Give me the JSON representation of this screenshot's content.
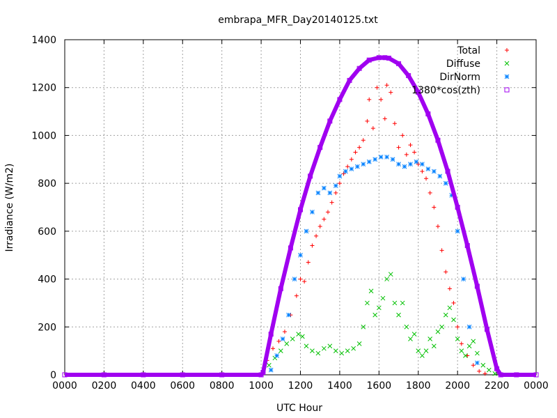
{
  "chart_data": {
    "type": "scatter",
    "title": "embrapa_MFR_Day20140125.txt",
    "xlabel": "UTC Hour",
    "ylabel": "Irradiance (W/m2)",
    "xlim": [
      0,
      24
    ],
    "ylim": [
      0,
      1400
    ],
    "x_ticks": [
      0,
      2,
      4,
      6,
      8,
      10,
      12,
      14,
      16,
      18,
      20,
      22,
      24
    ],
    "x_tick_labels": [
      "0000",
      "0200",
      "0400",
      "0600",
      "0800",
      "1000",
      "1200",
      "1400",
      "1600",
      "1800",
      "2000",
      "2200",
      "0000"
    ],
    "y_ticks": [
      0,
      200,
      400,
      600,
      800,
      1000,
      1200,
      1400
    ],
    "y_tick_labels": [
      "0",
      "200",
      "400",
      "600",
      "800",
      "1000",
      "1200",
      "1400"
    ],
    "grid": true,
    "legend_position": "top-right",
    "series": [
      {
        "name": "Total",
        "marker": "plus",
        "color": "#ff0000",
        "x": [
          10.3,
          10.6,
          10.9,
          11.2,
          11.5,
          11.8,
          12.0,
          12.2,
          12.4,
          12.6,
          12.8,
          13.0,
          13.2,
          13.4,
          13.6,
          13.8,
          14.0,
          14.2,
          14.4,
          14.6,
          14.8,
          15.0,
          15.2,
          15.4,
          15.5,
          15.7,
          15.9,
          16.1,
          16.3,
          16.4,
          16.6,
          16.8,
          17.0,
          17.2,
          17.4,
          17.6,
          17.8,
          18.0,
          18.2,
          18.4,
          18.6,
          18.8,
          19.0,
          19.2,
          19.4,
          19.6,
          19.8,
          20.0,
          20.2,
          20.5,
          20.8,
          21.1,
          21.4
        ],
        "y": [
          60,
          110,
          140,
          180,
          250,
          330,
          400,
          390,
          470,
          540,
          580,
          620,
          650,
          680,
          720,
          760,
          800,
          840,
          870,
          900,
          930,
          950,
          980,
          1060,
          1150,
          1030,
          1200,
          1150,
          1070,
          1210,
          1180,
          1050,
          950,
          1000,
          920,
          960,
          930,
          880,
          850,
          820,
          760,
          700,
          620,
          520,
          430,
          360,
          300,
          200,
          130,
          80,
          40,
          15,
          5
        ]
      },
      {
        "name": "Diffuse",
        "marker": "cross",
        "color": "#00c000",
        "x": [
          10.4,
          10.7,
          11.0,
          11.3,
          11.6,
          11.9,
          12.1,
          12.3,
          12.6,
          12.9,
          13.2,
          13.5,
          13.8,
          14.1,
          14.4,
          14.7,
          15.0,
          15.2,
          15.4,
          15.6,
          15.8,
          16.0,
          16.2,
          16.4,
          16.6,
          16.8,
          17.0,
          17.2,
          17.4,
          17.6,
          17.8,
          18.0,
          18.2,
          18.4,
          18.6,
          18.8,
          19.0,
          19.2,
          19.4,
          19.6,
          19.8,
          20.0,
          20.2,
          20.4,
          20.6,
          20.8,
          21.0,
          21.3,
          21.6,
          21.9
        ],
        "y": [
          40,
          70,
          100,
          130,
          150,
          170,
          160,
          120,
          100,
          90,
          110,
          120,
          100,
          90,
          100,
          110,
          130,
          200,
          300,
          350,
          250,
          280,
          320,
          400,
          420,
          300,
          250,
          300,
          200,
          150,
          170,
          100,
          80,
          100,
          150,
          120,
          180,
          200,
          250,
          280,
          230,
          150,
          100,
          80,
          120,
          140,
          90,
          40,
          20,
          5
        ]
      },
      {
        "name": "DirNorm",
        "marker": "star",
        "color": "#0080ff",
        "x": [
          10.5,
          10.8,
          11.1,
          11.4,
          11.7,
          12.0,
          12.3,
          12.6,
          12.9,
          13.2,
          13.5,
          13.8,
          14.0,
          14.3,
          14.6,
          14.9,
          15.2,
          15.5,
          15.8,
          16.1,
          16.4,
          16.7,
          17.0,
          17.3,
          17.6,
          17.9,
          18.2,
          18.5,
          18.8,
          19.1,
          19.4,
          19.7,
          20.0,
          20.3,
          20.6,
          21.0
        ],
        "y": [
          20,
          80,
          150,
          250,
          400,
          500,
          600,
          680,
          760,
          780,
          760,
          790,
          830,
          850,
          860,
          870,
          880,
          890,
          900,
          910,
          910,
          900,
          880,
          870,
          880,
          890,
          880,
          860,
          850,
          830,
          800,
          750,
          600,
          400,
          200,
          50
        ]
      },
      {
        "name": "1380*cos(zth)",
        "marker": "square",
        "color": "#a000f0",
        "x": [
          0,
          2,
          4,
          6,
          8,
          10,
          10.1,
          10.5,
          11,
          11.5,
          12,
          12.5,
          13,
          13.5,
          14,
          14.5,
          15,
          15.5,
          16.0,
          16.3,
          16.5,
          17,
          17.5,
          18,
          18.5,
          19,
          19.5,
          20,
          20.5,
          21,
          21.5,
          22,
          22.2,
          23,
          24
        ],
        "y": [
          0,
          0,
          0,
          0,
          0,
          0,
          10,
          170,
          360,
          530,
          690,
          830,
          950,
          1060,
          1150,
          1230,
          1280,
          1315,
          1325,
          1325,
          1323,
          1300,
          1250,
          1180,
          1090,
          980,
          850,
          700,
          540,
          370,
          190,
          25,
          0,
          0,
          0
        ]
      }
    ]
  }
}
